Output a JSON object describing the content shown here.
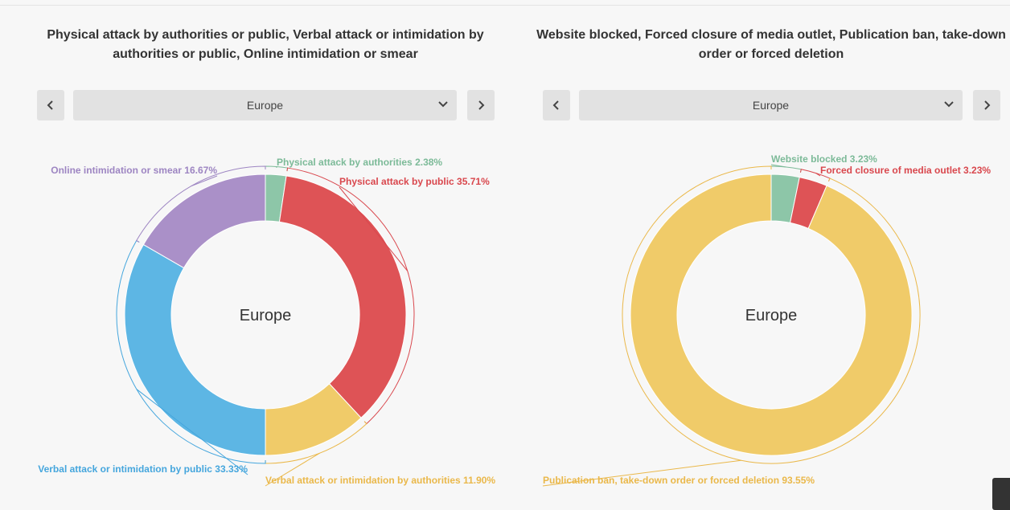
{
  "panels": [
    {
      "title_line1": "Physical attack by authorities or public, Verbal attack or intimidation by",
      "title_line2": "authorities or public, Online intimidation or smear",
      "region": "Europe",
      "center_label": "Europe"
    },
    {
      "title_line1": "Website blocked, Forced closure of media outlet, Publication ban, take-down",
      "title_line2": "order or forced deletion",
      "region": "Europe",
      "center_label": "Europe"
    }
  ],
  "icons": {
    "prev": "chevron-left-icon",
    "next": "chevron-right-icon",
    "dropdown": "chevron-down-icon"
  },
  "chart_data": [
    {
      "type": "pie",
      "variant": "donut",
      "center_text": "Europe",
      "labels": [
        "Physical attack by authorities 2.38%",
        "Physical attack by public 35.71%",
        "Verbal attack or intimidation by authorities 11.90%",
        "Verbal attack or intimidation by public 33.33%",
        "Online intimidation or smear 16.67%"
      ],
      "values": [
        2.38,
        35.71,
        11.9,
        33.33,
        16.67
      ],
      "colors": [
        "#8dc6a8",
        "#de5356",
        "#f0cb69",
        "#5db6e4",
        "#aa90c8"
      ],
      "label_colors": [
        "#7cba98",
        "#d9474d",
        "#eab84a",
        "#45a6dd",
        "#9d85c2"
      ]
    },
    {
      "type": "pie",
      "variant": "donut",
      "center_text": "Europe",
      "labels": [
        "Website blocked 3.23%",
        "Forced closure of media outlet 3.23%",
        "Publication ban, take-down order or forced deletion 93.55%"
      ],
      "values": [
        3.23,
        3.23,
        93.55
      ],
      "colors": [
        "#8dc6a8",
        "#de5356",
        "#f0cb69"
      ],
      "label_colors": [
        "#7cba98",
        "#d9474d",
        "#eab84a"
      ]
    }
  ]
}
